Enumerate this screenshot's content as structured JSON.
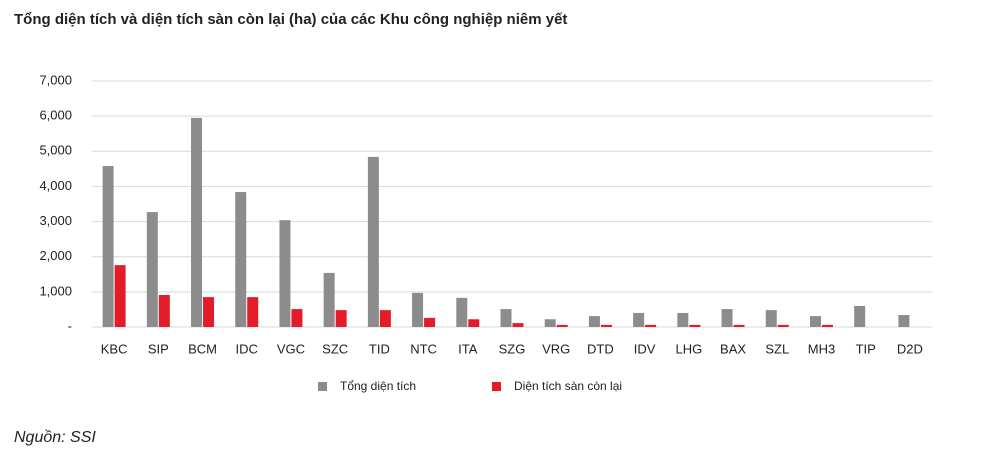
{
  "chart_data": {
    "type": "bar",
    "title": "Tổng diện tích và diện tích sàn còn lại (ha) của các Khu công nghiệp niêm yết",
    "categories": [
      "KBC",
      "SIP",
      "BCM",
      "IDC",
      "VGC",
      "SZC",
      "TID",
      "NTC",
      "ITA",
      "SZG",
      "VRG",
      "DTD",
      "IDV",
      "LHG",
      "BAX",
      "SZL",
      "MH3",
      "TIP",
      "D2D"
    ],
    "series": [
      {
        "name": "Tổng diện tích",
        "color": "#8c8c8c",
        "values": [
          4580,
          3270,
          5950,
          3840,
          3040,
          1540,
          4840,
          970,
          830,
          510,
          220,
          310,
          400,
          400,
          510,
          480,
          310,
          600,
          340
        ]
      },
      {
        "name": "Diện tích sàn còn lại",
        "color": "#e31c2a",
        "values": [
          1760,
          910,
          850,
          850,
          510,
          480,
          480,
          260,
          220,
          110,
          60,
          60,
          60,
          60,
          60,
          60,
          60,
          0,
          0
        ]
      }
    ],
    "ylim": [
      0,
      7000
    ],
    "yticks": [
      {
        "value": 0,
        "label": "-"
      },
      {
        "value": 1000,
        "label": "1,000"
      },
      {
        "value": 2000,
        "label": "2,000"
      },
      {
        "value": 3000,
        "label": "3,000"
      },
      {
        "value": 4000,
        "label": "4,000"
      },
      {
        "value": 5000,
        "label": "5,000"
      },
      {
        "value": 6000,
        "label": "6,000"
      },
      {
        "value": 7000,
        "label": "7,000"
      }
    ],
    "grid": true,
    "legend": "bottom",
    "source": "Nguồn: SSI"
  }
}
